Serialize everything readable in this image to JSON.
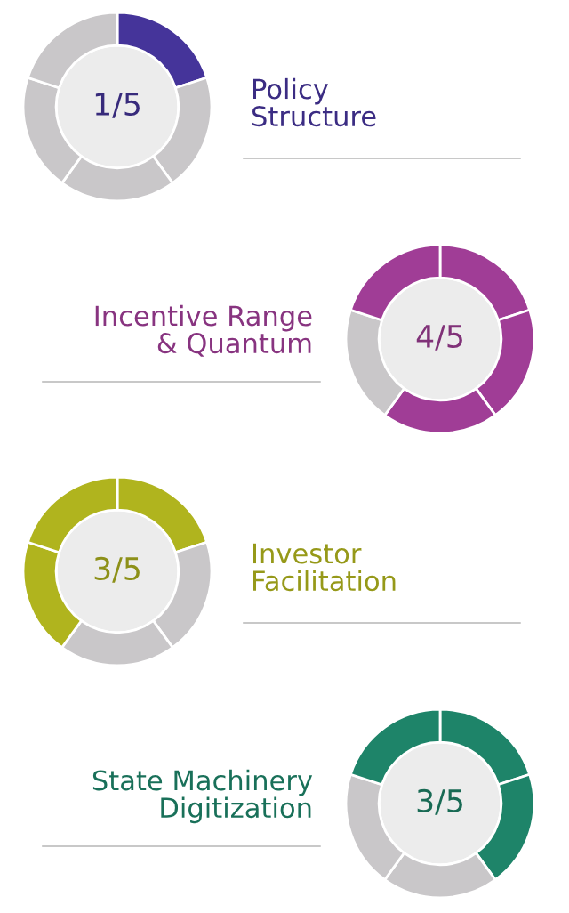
{
  "chart_data": [
    {
      "type": "donut",
      "title": "Policy\nStructure",
      "categories": [
        null,
        null,
        null,
        null,
        null
      ],
      "values": [
        20,
        20,
        20,
        20,
        20
      ],
      "colors": [
        "#45349a",
        "#c9c7c9",
        "#c9c7c9",
        "#c9c7c9",
        "#c9c7c9"
      ],
      "annotations": [
        "1/5"
      ]
    },
    {
      "type": "donut",
      "title": "Incentive Range\n& Quantum",
      "categories": [
        null,
        null,
        null,
        null,
        null
      ],
      "values": [
        20,
        20,
        20,
        20,
        20
      ],
      "colors": [
        "#a03d96",
        "#a03d96",
        "#a03d96",
        "#c9c7c9",
        "#a03d96"
      ],
      "annotations": [
        "4/5"
      ]
    },
    {
      "type": "donut",
      "title": "Investor\nFacilitation",
      "categories": [
        null,
        null,
        null,
        null,
        null
      ],
      "values": [
        20,
        20,
        20,
        20,
        20
      ],
      "colors": [
        "#b0b41e",
        "#c9c7c9",
        "#c9c7c9",
        "#b0b41e",
        "#b0b41e"
      ],
      "annotations": [
        "3/5"
      ]
    },
    {
      "type": "donut",
      "title": "State Machinery\nDigitization",
      "categories": [
        null,
        null,
        null,
        null,
        null
      ],
      "values": [
        20,
        20,
        20,
        20,
        20
      ],
      "colors": [
        "#1e8469",
        "#1e8469",
        "#c9c7c9",
        "#c9c7c9",
        "#1e8469"
      ],
      "annotations": [
        "3/5"
      ]
    }
  ]
}
